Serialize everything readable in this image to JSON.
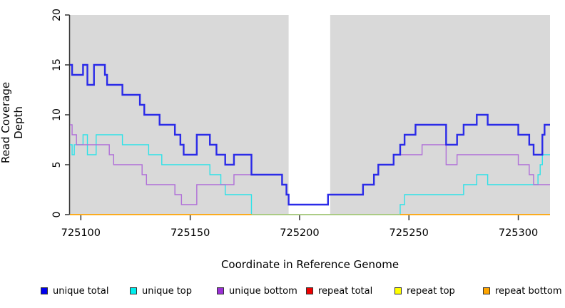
{
  "chart_data": {
    "type": "line",
    "subtype": "step-coverage",
    "title": "",
    "xlabel": "Coordinate in Reference Genome",
    "ylabel": "Read Coverage Depth",
    "xlim": [
      725095,
      725314.5
    ],
    "ylim": [
      0,
      20
    ],
    "x_ticks": [
      725100,
      725150,
      725200,
      725250,
      725300
    ],
    "y_ticks": [
      0,
      5,
      10,
      15,
      20
    ],
    "grid": false,
    "legend_position": "bottom",
    "plot_background_color": "#d9d9d9",
    "gap_band": {
      "x0": 725195,
      "x1": 725214,
      "color": "#ffffff"
    },
    "baseline_overlap_segment": {
      "note": "pale green where unique-top sits at 0 on top of repeat baseline",
      "x0": 725178,
      "x1": 725246,
      "y": 0,
      "color": "#9bd49b"
    },
    "series": [
      {
        "name": "unique total",
        "color": "#2b2be8",
        "line_width": 2.4,
        "x_end": 725314.5,
        "steps": [
          [
            725095,
            15
          ],
          [
            725096,
            14
          ],
          [
            725101,
            15
          ],
          [
            725103,
            13
          ],
          [
            725106,
            15
          ],
          [
            725111,
            14
          ],
          [
            725112,
            13
          ],
          [
            725119,
            12
          ],
          [
            725127,
            11
          ],
          [
            725129,
            10
          ],
          [
            725136,
            9
          ],
          [
            725143,
            8
          ],
          [
            725145.5,
            7
          ],
          [
            725147,
            6
          ],
          [
            725153,
            8
          ],
          [
            725159,
            7
          ],
          [
            725162,
            6
          ],
          [
            725166,
            5
          ],
          [
            725170,
            6
          ],
          [
            725178,
            4
          ],
          [
            725192,
            3
          ],
          [
            725194,
            2
          ],
          [
            725195,
            1
          ],
          [
            725213,
            2
          ],
          [
            725229,
            3
          ],
          [
            725234,
            4
          ],
          [
            725236,
            5
          ],
          [
            725243,
            6
          ],
          [
            725246,
            7
          ],
          [
            725248,
            8
          ],
          [
            725253,
            9
          ],
          [
            725267,
            7
          ],
          [
            725272,
            8
          ],
          [
            725275,
            9
          ],
          [
            725281,
            10
          ],
          [
            725286,
            9
          ],
          [
            725300,
            8
          ],
          [
            725305,
            7
          ],
          [
            725307,
            6
          ],
          [
            725311,
            8
          ],
          [
            725312,
            9
          ]
        ]
      },
      {
        "name": "unique top",
        "color": "#2ee2e8",
        "line_width": 1.4,
        "x_end": 725314.5,
        "steps": [
          [
            725095,
            7
          ],
          [
            725096,
            6
          ],
          [
            725097,
            7
          ],
          [
            725101,
            8
          ],
          [
            725103,
            6
          ],
          [
            725107,
            8
          ],
          [
            725119,
            7
          ],
          [
            725131,
            6
          ],
          [
            725137,
            5
          ],
          [
            725159,
            4
          ],
          [
            725164,
            3
          ],
          [
            725166,
            2
          ],
          [
            725178,
            0
          ],
          [
            725246,
            1
          ],
          [
            725248,
            2
          ],
          [
            725275,
            3
          ],
          [
            725281,
            4
          ],
          [
            725286,
            3
          ],
          [
            725309,
            4
          ],
          [
            725310,
            5
          ],
          [
            725311,
            6
          ]
        ]
      },
      {
        "name": "unique bottom",
        "color": "#b06fd8",
        "line_width": 1.4,
        "x_end": 725314.5,
        "steps": [
          [
            725095,
            9
          ],
          [
            725096,
            8
          ],
          [
            725098,
            7
          ],
          [
            725113,
            6
          ],
          [
            725115,
            5
          ],
          [
            725128,
            4
          ],
          [
            725130,
            3
          ],
          [
            725143,
            2
          ],
          [
            725146,
            1
          ],
          [
            725153,
            3
          ],
          [
            725170,
            4
          ],
          [
            725192,
            3
          ],
          [
            725194,
            2
          ],
          [
            725195,
            1
          ],
          [
            725213,
            2
          ],
          [
            725229,
            3
          ],
          [
            725234,
            4
          ],
          [
            725236,
            5
          ],
          [
            725243,
            6
          ],
          [
            725256,
            7
          ],
          [
            725267,
            5
          ],
          [
            725272,
            6
          ],
          [
            725300,
            5
          ],
          [
            725305,
            4
          ],
          [
            725307,
            3
          ]
        ]
      },
      {
        "name": "repeat total",
        "color": "#ee0000",
        "line_width": 1.3,
        "x_end": 725314.5,
        "steps": [
          [
            725095,
            0
          ]
        ]
      },
      {
        "name": "repeat top",
        "color": "#ffff00",
        "line_width": 1.3,
        "x_end": 725314.5,
        "steps": [
          [
            725095,
            0
          ]
        ]
      },
      {
        "name": "repeat bottom",
        "color": "#ffa500",
        "line_width": 1.6,
        "x_end": 725314.5,
        "steps": [
          [
            725095,
            0
          ]
        ]
      }
    ]
  },
  "axes": {
    "x_title": "Coordinate in Reference Genome",
    "y_title": "Read Coverage Depth",
    "x_tick_labels": [
      "725100",
      "725150",
      "725200",
      "725250",
      "725300"
    ],
    "y_tick_labels": [
      "0",
      "5",
      "10",
      "15",
      "20"
    ]
  },
  "legend": {
    "items": [
      {
        "label": "unique total",
        "color": "#0000ee"
      },
      {
        "label": "unique top",
        "color": "#00eeee"
      },
      {
        "label": "unique bottom",
        "color": "#9b30d6"
      },
      {
        "label": "repeat total",
        "color": "#ee0000"
      },
      {
        "label": "repeat top",
        "color": "#ffff00"
      },
      {
        "label": "repeat bottom",
        "color": "#ffa500"
      }
    ]
  }
}
